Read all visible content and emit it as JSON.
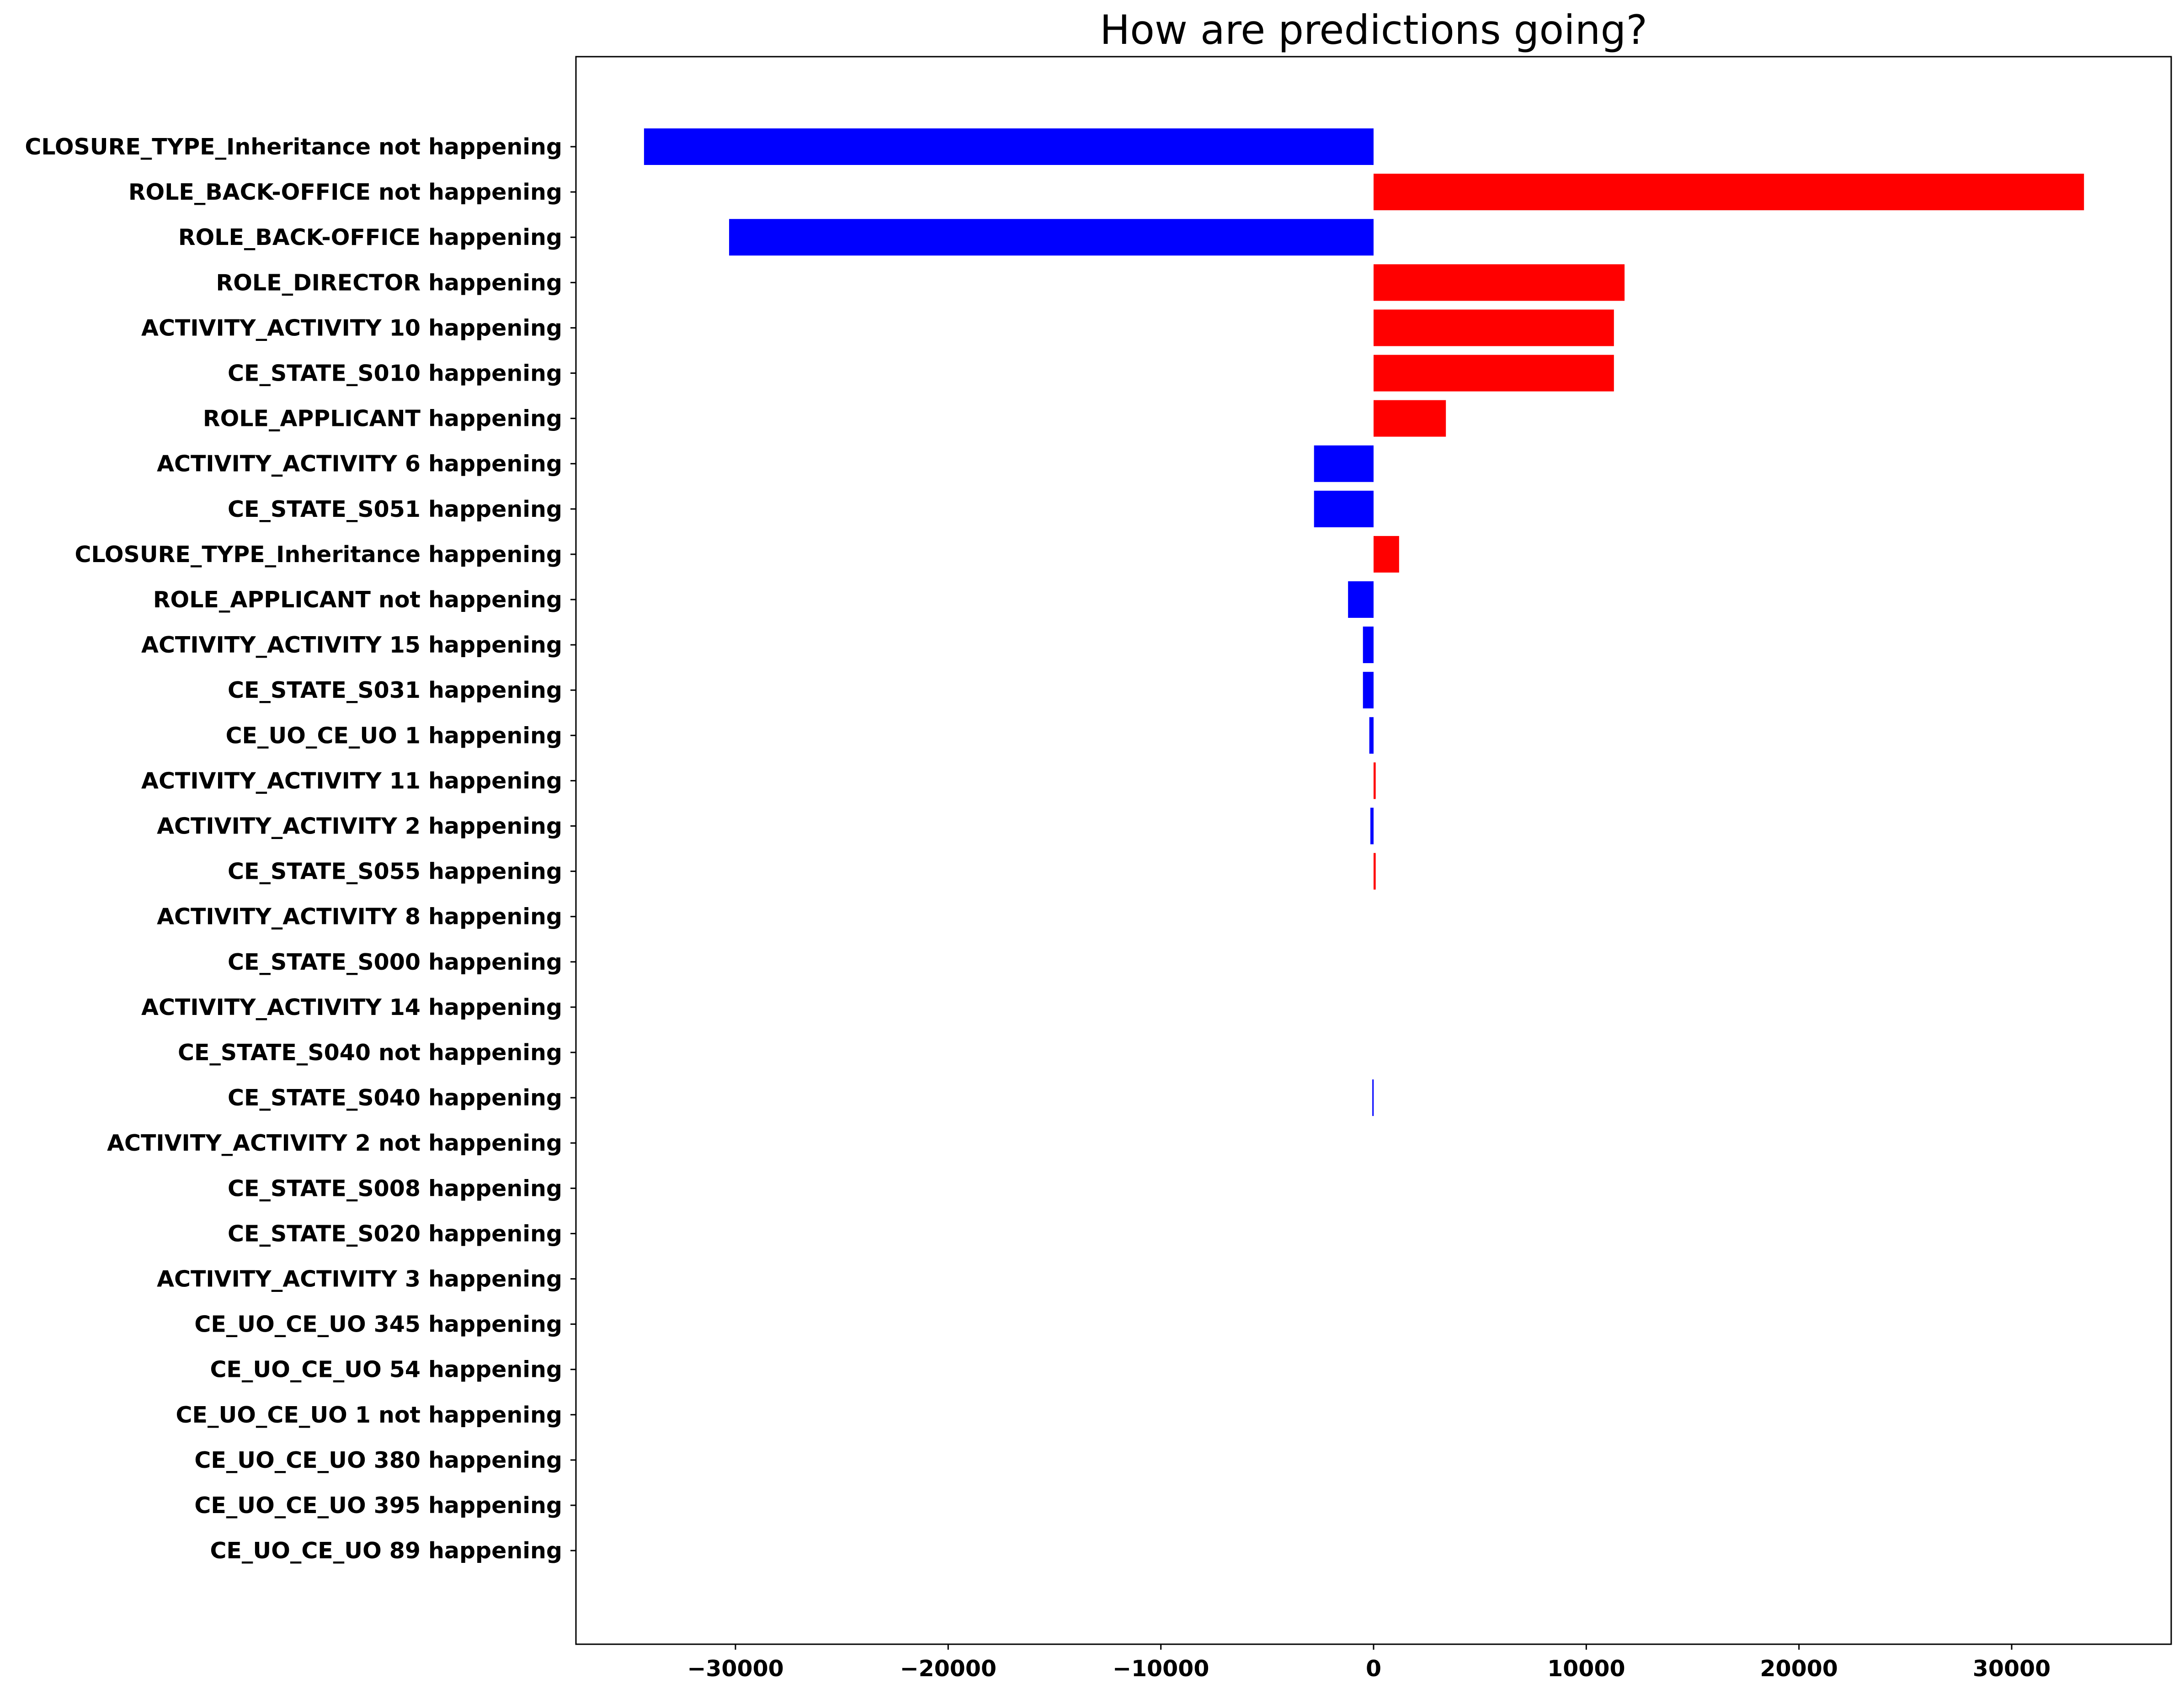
{
  "chart_data": {
    "type": "bar",
    "orientation": "horizontal",
    "title": "How are predictions going?",
    "xlabel": "",
    "ylabel": "",
    "xlim": [
      -37500,
      37500
    ],
    "xticks": [
      -30000,
      -20000,
      -10000,
      0,
      10000,
      20000,
      30000
    ],
    "xtick_labels": [
      "−30000",
      "−20000",
      "−10000",
      "0",
      "10000",
      "20000",
      "30000"
    ],
    "grid": false,
    "colors": {
      "positive": "#ff0000",
      "negative": "#0000ff"
    },
    "categories": [
      "CLOSURE_TYPE_Inheritance not happening",
      "ROLE_BACK-OFFICE not happening",
      "ROLE_BACK-OFFICE happening",
      "ROLE_DIRECTOR happening",
      "ACTIVITY_ACTIVITY 10 happening",
      "CE_STATE_S010 happening",
      "ROLE_APPLICANT happening",
      "ACTIVITY_ACTIVITY 6 happening",
      "CE_STATE_S051 happening",
      "CLOSURE_TYPE_Inheritance happening",
      "ROLE_APPLICANT not happening",
      "ACTIVITY_ACTIVITY 15 happening",
      "CE_STATE_S031 happening",
      "CE_UO_CE_UO 1 happening",
      "ACTIVITY_ACTIVITY 11 happening",
      "ACTIVITY_ACTIVITY 2 happening",
      "CE_STATE_S055 happening",
      "ACTIVITY_ACTIVITY 8 happening",
      "CE_STATE_S000 happening",
      "ACTIVITY_ACTIVITY 14 happening",
      "CE_STATE_S040 not happening",
      "CE_STATE_S040 happening",
      "ACTIVITY_ACTIVITY 2 not happening",
      "CE_STATE_S008 happening",
      "CE_STATE_S020 happening",
      "ACTIVITY_ACTIVITY 3 happening",
      "CE_UO_CE_UO 345 happening",
      "CE_UO_CE_UO 54 happening",
      "CE_UO_CE_UO 1 not happening",
      "CE_UO_CE_UO 380 happening",
      "CE_UO_CE_UO 395 happening",
      "CE_UO_CE_UO 89 happening"
    ],
    "values": [
      -34300,
      33400,
      -30300,
      11800,
      11300,
      11300,
      3400,
      -2800,
      -2800,
      1200,
      -1200,
      -500,
      -500,
      -200,
      100,
      -150,
      100,
      0,
      0,
      0,
      0,
      -60,
      0,
      0,
      0,
      0,
      0,
      0,
      0,
      0,
      0,
      0
    ]
  }
}
